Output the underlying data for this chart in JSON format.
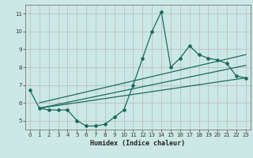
{
  "title": "",
  "xlabel": "Humidex (Indice chaleur)",
  "ylabel": "",
  "bg_color": "#cce8e4",
  "grid_color": "#b0b0b0",
  "line_color": "#1a6b60",
  "xlim": [
    -0.5,
    23.5
  ],
  "ylim": [
    4.5,
    11.5
  ],
  "xticks": [
    0,
    1,
    2,
    3,
    4,
    5,
    6,
    7,
    8,
    9,
    10,
    11,
    12,
    13,
    14,
    15,
    16,
    17,
    18,
    19,
    20,
    21,
    22,
    23
  ],
  "yticks": [
    5,
    6,
    7,
    8,
    9,
    10,
    11
  ],
  "curve_x": [
    0,
    1,
    2,
    3,
    4,
    5,
    6,
    7,
    8,
    9,
    10,
    11,
    12,
    13,
    14,
    15,
    16,
    17,
    18,
    19,
    20,
    21,
    22,
    23
  ],
  "curve_y": [
    6.7,
    5.7,
    5.6,
    5.6,
    5.6,
    5.0,
    4.7,
    4.7,
    4.8,
    5.2,
    5.6,
    7.0,
    8.5,
    10.0,
    11.1,
    8.0,
    8.5,
    9.2,
    8.7,
    8.5,
    8.4,
    8.2,
    7.5,
    7.4
  ],
  "trend1_x": [
    1,
    23
  ],
  "trend1_y": [
    5.7,
    8.1
  ],
  "trend2_x": [
    1,
    23
  ],
  "trend2_y": [
    5.7,
    7.4
  ],
  "trend3_x": [
    1,
    23
  ],
  "trend3_y": [
    6.0,
    8.7
  ]
}
